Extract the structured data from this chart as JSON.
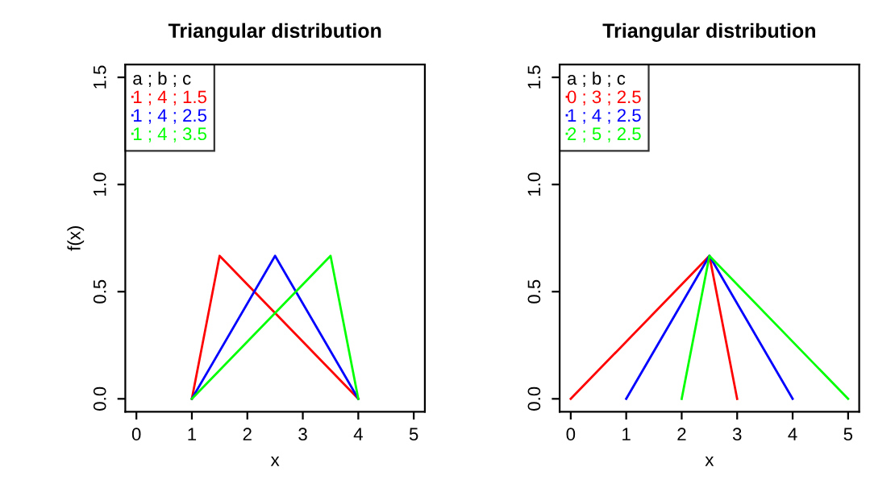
{
  "chart_data": [
    {
      "type": "line",
      "title": "Triangular distribution",
      "xlabel": "x",
      "ylabel": "f(x)",
      "legend_title": "a ; b ; c",
      "legend": "top left",
      "grid": false,
      "marker": "none",
      "line_style": "solid",
      "xlim": [
        -0.2,
        5.2
      ],
      "ylim": [
        -0.06,
        1.56
      ],
      "xticks": [
        0,
        1,
        2,
        3,
        4,
        5
      ],
      "yticks": [
        {
          "value": 0,
          "label": "0.0"
        },
        {
          "value": 0.5,
          "label": "0.5"
        },
        {
          "value": 1,
          "label": "1.0"
        },
        {
          "value": 1.5,
          "label": "1.5"
        }
      ],
      "series": [
        {
          "name": "1 ; 4 ; 1.5",
          "color": "#ff0000",
          "x": [
            1,
            1.5,
            4
          ],
          "values": [
            0,
            0.667,
            0
          ]
        },
        {
          "name": "1 ; 4 ; 2.5",
          "color": "#0000ff",
          "x": [
            1,
            2.5,
            4
          ],
          "values": [
            0,
            0.667,
            0
          ]
        },
        {
          "name": "1 ; 4 ; 3.5",
          "color": "#00ff00",
          "x": [
            1,
            3.5,
            4
          ],
          "values": [
            0,
            0.667,
            0
          ]
        }
      ]
    },
    {
      "type": "line",
      "title": "Triangular distribution",
      "xlabel": "x",
      "legend_title": "a ; b ; c",
      "legend": "top left",
      "grid": false,
      "marker": "none",
      "line_style": "solid",
      "xlim": [
        -0.2,
        5.2
      ],
      "ylim": [
        -0.06,
        1.56
      ],
      "xticks": [
        0,
        1,
        2,
        3,
        4,
        5
      ],
      "yticks": [
        {
          "value": 0,
          "label": "0.0"
        },
        {
          "value": 0.5,
          "label": "0.5"
        },
        {
          "value": 1,
          "label": "1.0"
        },
        {
          "value": 1.5,
          "label": "1.5"
        }
      ],
      "series": [
        {
          "name": "0 ; 3 ; 2.5",
          "color": "#ff0000",
          "x": [
            0,
            2.5,
            3
          ],
          "values": [
            0,
            0.667,
            0
          ]
        },
        {
          "name": "1 ; 4 ; 2.5",
          "color": "#0000ff",
          "x": [
            1,
            2.5,
            4
          ],
          "values": [
            0,
            0.667,
            0
          ]
        },
        {
          "name": "2 ; 5 ; 2.5",
          "color": "#00ff00",
          "x": [
            2,
            2.5,
            5
          ],
          "values": [
            0,
            0.667,
            0
          ]
        }
      ]
    }
  ]
}
